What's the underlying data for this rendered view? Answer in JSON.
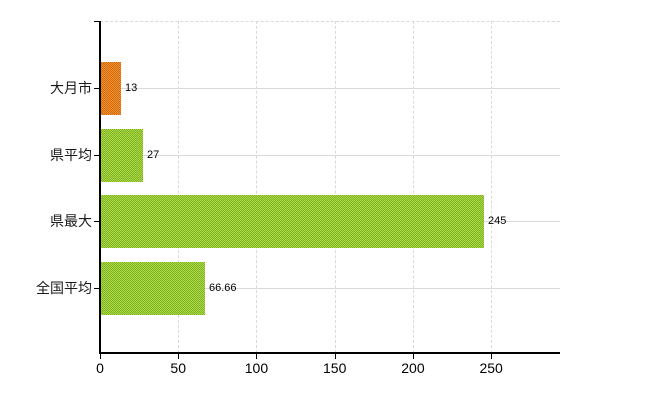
{
  "chart_data": {
    "type": "bar",
    "orientation": "horizontal",
    "title": "",
    "xlabel": "",
    "ylabel": "",
    "categories": [
      "大月市",
      "県平均",
      "県最大",
      "全国平均"
    ],
    "values": [
      13,
      27,
      245,
      66.66
    ],
    "value_labels": [
      "13",
      "27",
      "245",
      "66.66"
    ],
    "bar_colors": [
      "orange",
      "green",
      "green",
      "green"
    ],
    "x_ticks": [
      0,
      50,
      100,
      150,
      200,
      250
    ],
    "x_tick_labels": [
      "0",
      "50",
      "100",
      "150",
      "200",
      "250"
    ],
    "xlim": [
      0,
      294
    ],
    "grid": {
      "vertical": "dashed",
      "horizontal": "solid",
      "top_border": "dashed"
    },
    "legend": "none",
    "colors": {
      "orange": "#e07c1e",
      "orange_light": "#f0912b",
      "orange_dark": "#cf6a15",
      "green": "#9ccb37",
      "green_light": "#aad83e",
      "green_dark": "#7fb32a",
      "gridline_vertical": "#d9d9d9",
      "gridline_horizontal": "#d5dcd5",
      "axis": "#000000",
      "text": "#1a1a1a"
    }
  }
}
